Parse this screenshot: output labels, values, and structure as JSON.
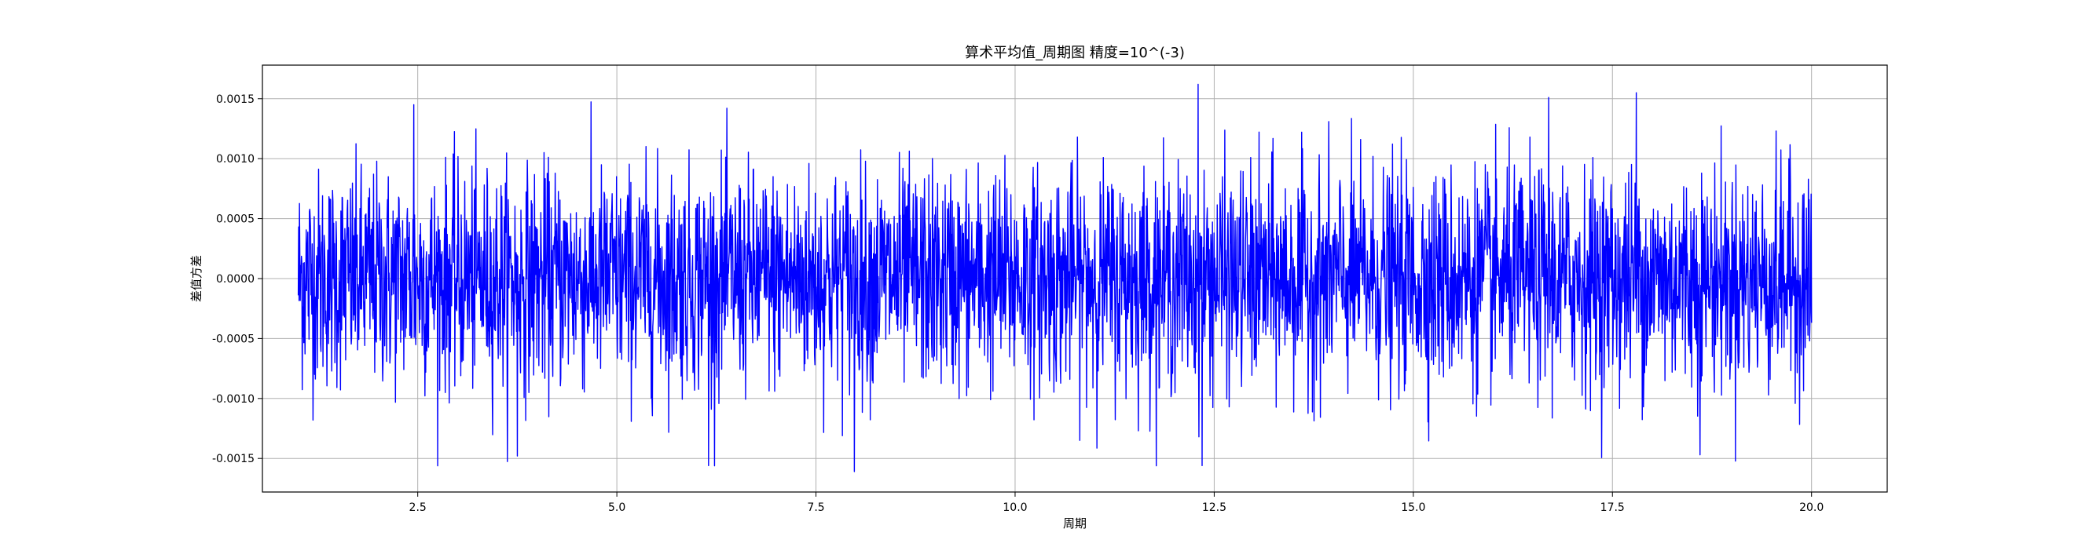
{
  "chart_data": {
    "type": "line",
    "title": "算术平均值_周期图 精度=10^(-3)",
    "xlabel": "周期",
    "ylabel": "差值方差",
    "xlim": [
      0.55,
      20.95
    ],
    "ylim": [
      -0.00178,
      0.00178
    ],
    "xticks": [
      2.5,
      5.0,
      7.5,
      10.0,
      12.5,
      15.0,
      17.5,
      20.0
    ],
    "xtick_labels": [
      "2.5",
      "5.0",
      "7.5",
      "10.0",
      "12.5",
      "15.0",
      "17.5",
      "20.0"
    ],
    "yticks": [
      -0.0015,
      -0.001,
      -0.0005,
      0.0,
      0.0005,
      0.001,
      0.0015
    ],
    "ytick_labels": [
      "-0.0015",
      "-0.0010",
      "-0.0005",
      "0.0000",
      "0.0005",
      "0.0010",
      "0.0015"
    ],
    "grid": true,
    "series": [
      {
        "color": "#0000ff",
        "x_range": [
          1.0,
          20.0
        ],
        "point_count": 3800,
        "amplitude_range": [
          -0.00161,
          0.00161
        ],
        "extremes": [
          {
            "x": 2.45,
            "y": 0.00145
          },
          {
            "x": 3.75,
            "y": -0.00148
          },
          {
            "x": 6.15,
            "y": -0.00156
          },
          {
            "x": 7.98,
            "y": -0.00161
          },
          {
            "x": 12.3,
            "y": 0.00162
          },
          {
            "x": 12.35,
            "y": -0.00156
          },
          {
            "x": 16.7,
            "y": 0.00151
          },
          {
            "x": 17.8,
            "y": 0.00155
          },
          {
            "x": 18.6,
            "y": -0.00147
          }
        ]
      }
    ]
  }
}
